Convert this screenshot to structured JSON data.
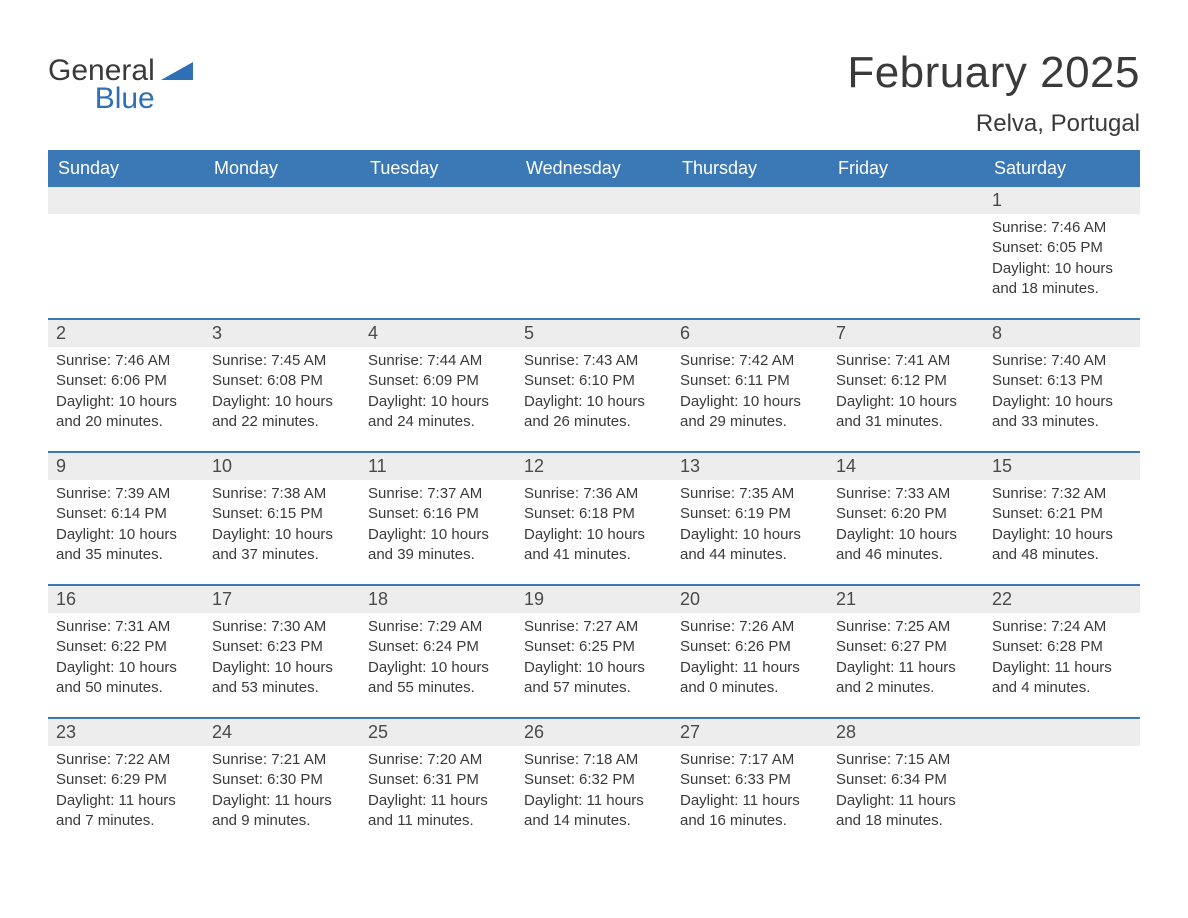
{
  "logo": {
    "word1": "General",
    "word2": "Blue",
    "sail_color": "#2f6fb3"
  },
  "title": "February 2025",
  "location": "Relva, Portugal",
  "colors": {
    "header_bg": "#3a78b6",
    "header_text": "#ffffff",
    "daynum_bg": "#ededed",
    "text": "#3a3a3a",
    "rule": "#3a78b6",
    "page_bg": "#ffffff"
  },
  "typography": {
    "title_fontsize": 44,
    "location_fontsize": 24,
    "weekday_fontsize": 18,
    "daynum_fontsize": 18,
    "body_fontsize": 15
  },
  "weekdays": [
    "Sunday",
    "Monday",
    "Tuesday",
    "Wednesday",
    "Thursday",
    "Friday",
    "Saturday"
  ],
  "weeks": [
    {
      "days": [
        null,
        null,
        null,
        null,
        null,
        null,
        {
          "n": "1",
          "sunrise": "Sunrise: 7:46 AM",
          "sunset": "Sunset: 6:05 PM",
          "day1": "Daylight: 10 hours",
          "day2": "and 18 minutes."
        }
      ]
    },
    {
      "days": [
        {
          "n": "2",
          "sunrise": "Sunrise: 7:46 AM",
          "sunset": "Sunset: 6:06 PM",
          "day1": "Daylight: 10 hours",
          "day2": "and 20 minutes."
        },
        {
          "n": "3",
          "sunrise": "Sunrise: 7:45 AM",
          "sunset": "Sunset: 6:08 PM",
          "day1": "Daylight: 10 hours",
          "day2": "and 22 minutes."
        },
        {
          "n": "4",
          "sunrise": "Sunrise: 7:44 AM",
          "sunset": "Sunset: 6:09 PM",
          "day1": "Daylight: 10 hours",
          "day2": "and 24 minutes."
        },
        {
          "n": "5",
          "sunrise": "Sunrise: 7:43 AM",
          "sunset": "Sunset: 6:10 PM",
          "day1": "Daylight: 10 hours",
          "day2": "and 26 minutes."
        },
        {
          "n": "6",
          "sunrise": "Sunrise: 7:42 AM",
          "sunset": "Sunset: 6:11 PM",
          "day1": "Daylight: 10 hours",
          "day2": "and 29 minutes."
        },
        {
          "n": "7",
          "sunrise": "Sunrise: 7:41 AM",
          "sunset": "Sunset: 6:12 PM",
          "day1": "Daylight: 10 hours",
          "day2": "and 31 minutes."
        },
        {
          "n": "8",
          "sunrise": "Sunrise: 7:40 AM",
          "sunset": "Sunset: 6:13 PM",
          "day1": "Daylight: 10 hours",
          "day2": "and 33 minutes."
        }
      ]
    },
    {
      "days": [
        {
          "n": "9",
          "sunrise": "Sunrise: 7:39 AM",
          "sunset": "Sunset: 6:14 PM",
          "day1": "Daylight: 10 hours",
          "day2": "and 35 minutes."
        },
        {
          "n": "10",
          "sunrise": "Sunrise: 7:38 AM",
          "sunset": "Sunset: 6:15 PM",
          "day1": "Daylight: 10 hours",
          "day2": "and 37 minutes."
        },
        {
          "n": "11",
          "sunrise": "Sunrise: 7:37 AM",
          "sunset": "Sunset: 6:16 PM",
          "day1": "Daylight: 10 hours",
          "day2": "and 39 minutes."
        },
        {
          "n": "12",
          "sunrise": "Sunrise: 7:36 AM",
          "sunset": "Sunset: 6:18 PM",
          "day1": "Daylight: 10 hours",
          "day2": "and 41 minutes."
        },
        {
          "n": "13",
          "sunrise": "Sunrise: 7:35 AM",
          "sunset": "Sunset: 6:19 PM",
          "day1": "Daylight: 10 hours",
          "day2": "and 44 minutes."
        },
        {
          "n": "14",
          "sunrise": "Sunrise: 7:33 AM",
          "sunset": "Sunset: 6:20 PM",
          "day1": "Daylight: 10 hours",
          "day2": "and 46 minutes."
        },
        {
          "n": "15",
          "sunrise": "Sunrise: 7:32 AM",
          "sunset": "Sunset: 6:21 PM",
          "day1": "Daylight: 10 hours",
          "day2": "and 48 minutes."
        }
      ]
    },
    {
      "days": [
        {
          "n": "16",
          "sunrise": "Sunrise: 7:31 AM",
          "sunset": "Sunset: 6:22 PM",
          "day1": "Daylight: 10 hours",
          "day2": "and 50 minutes."
        },
        {
          "n": "17",
          "sunrise": "Sunrise: 7:30 AM",
          "sunset": "Sunset: 6:23 PM",
          "day1": "Daylight: 10 hours",
          "day2": "and 53 minutes."
        },
        {
          "n": "18",
          "sunrise": "Sunrise: 7:29 AM",
          "sunset": "Sunset: 6:24 PM",
          "day1": "Daylight: 10 hours",
          "day2": "and 55 minutes."
        },
        {
          "n": "19",
          "sunrise": "Sunrise: 7:27 AM",
          "sunset": "Sunset: 6:25 PM",
          "day1": "Daylight: 10 hours",
          "day2": "and 57 minutes."
        },
        {
          "n": "20",
          "sunrise": "Sunrise: 7:26 AM",
          "sunset": "Sunset: 6:26 PM",
          "day1": "Daylight: 11 hours",
          "day2": "and 0 minutes."
        },
        {
          "n": "21",
          "sunrise": "Sunrise: 7:25 AM",
          "sunset": "Sunset: 6:27 PM",
          "day1": "Daylight: 11 hours",
          "day2": "and 2 minutes."
        },
        {
          "n": "22",
          "sunrise": "Sunrise: 7:24 AM",
          "sunset": "Sunset: 6:28 PM",
          "day1": "Daylight: 11 hours",
          "day2": "and 4 minutes."
        }
      ]
    },
    {
      "days": [
        {
          "n": "23",
          "sunrise": "Sunrise: 7:22 AM",
          "sunset": "Sunset: 6:29 PM",
          "day1": "Daylight: 11 hours",
          "day2": "and 7 minutes."
        },
        {
          "n": "24",
          "sunrise": "Sunrise: 7:21 AM",
          "sunset": "Sunset: 6:30 PM",
          "day1": "Daylight: 11 hours",
          "day2": "and 9 minutes."
        },
        {
          "n": "25",
          "sunrise": "Sunrise: 7:20 AM",
          "sunset": "Sunset: 6:31 PM",
          "day1": "Daylight: 11 hours",
          "day2": "and 11 minutes."
        },
        {
          "n": "26",
          "sunrise": "Sunrise: 7:18 AM",
          "sunset": "Sunset: 6:32 PM",
          "day1": "Daylight: 11 hours",
          "day2": "and 14 minutes."
        },
        {
          "n": "27",
          "sunrise": "Sunrise: 7:17 AM",
          "sunset": "Sunset: 6:33 PM",
          "day1": "Daylight: 11 hours",
          "day2": "and 16 minutes."
        },
        {
          "n": "28",
          "sunrise": "Sunrise: 7:15 AM",
          "sunset": "Sunset: 6:34 PM",
          "day1": "Daylight: 11 hours",
          "day2": "and 18 minutes."
        },
        null
      ]
    }
  ]
}
